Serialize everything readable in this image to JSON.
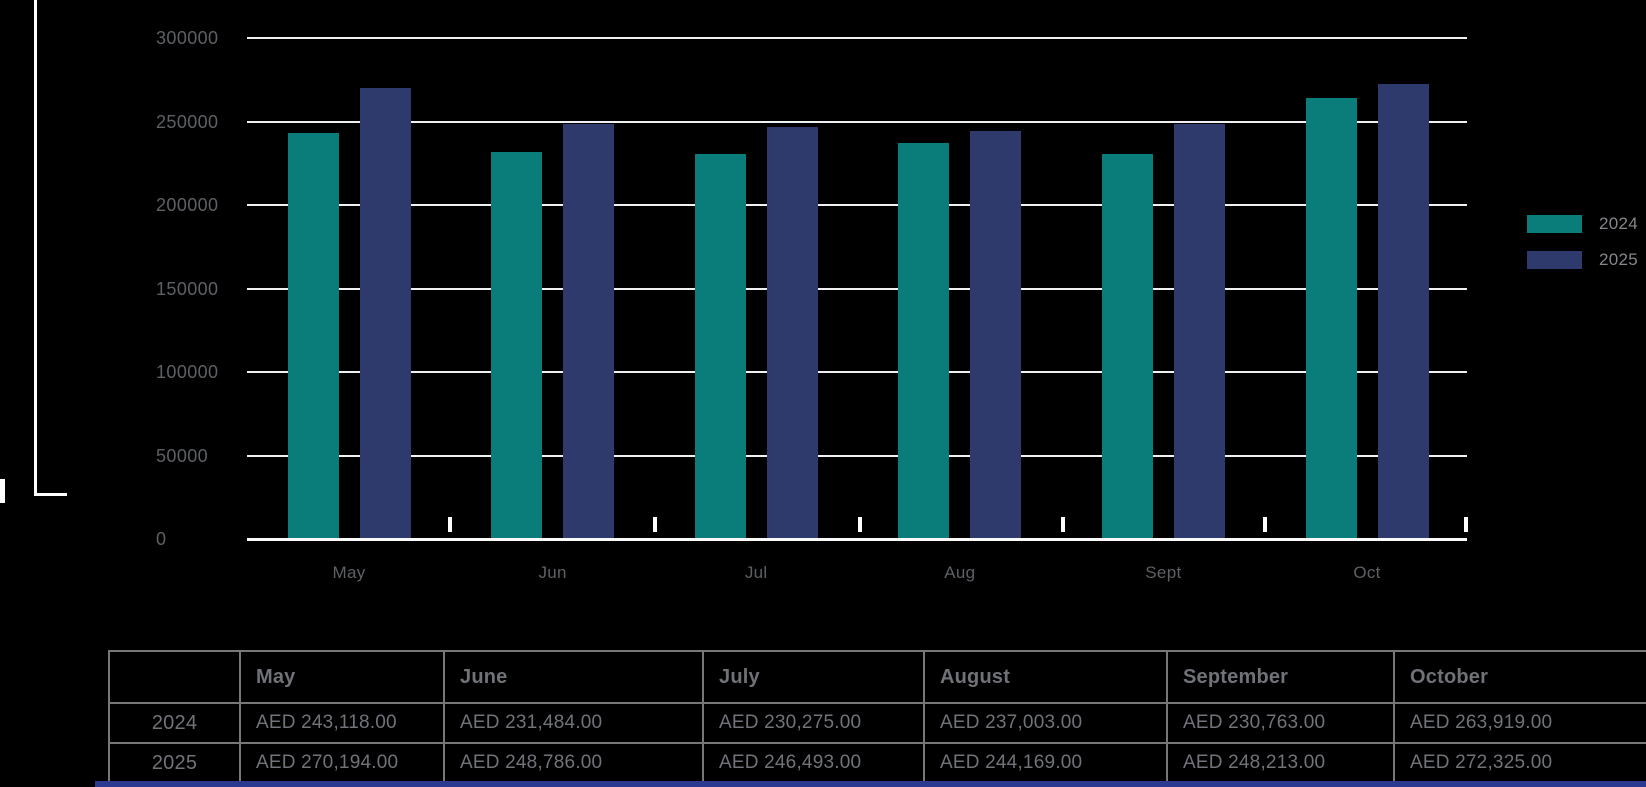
{
  "chart_data": {
    "type": "bar",
    "categories": [
      "May",
      "Jun",
      "Jul",
      "Aug",
      "Sept",
      "Oct"
    ],
    "series": [
      {
        "name": "2024",
        "color": "#0a7c79",
        "values": [
          243118,
          231484,
          230275,
          237003,
          230763,
          263919
        ]
      },
      {
        "name": "2025",
        "color": "#2e3a6b",
        "values": [
          270194,
          248786,
          246493,
          244169,
          248213,
          272325
        ]
      }
    ],
    "title": "",
    "xlabel": "",
    "ylabel": "",
    "ylim": [
      0,
      300000
    ],
    "ytick_values": [
      0,
      50000,
      100000,
      150000,
      200000,
      250000,
      300000
    ],
    "ytick_labels": [
      "0",
      "50000",
      "100000",
      "150000",
      "200000",
      "250000",
      "300000"
    ],
    "grid": true,
    "legend_position": "right"
  },
  "legend": {
    "items": [
      {
        "label": "2024",
        "color": "#0a7c79"
      },
      {
        "label": "2025",
        "color": "#2e3a6b"
      }
    ]
  },
  "table": {
    "columns": [
      "",
      "May",
      "June",
      "July",
      "August",
      "September",
      "October"
    ],
    "rows": [
      {
        "header": "2024",
        "cells": [
          "AED 243,118.00",
          "AED 231,484.00",
          "AED 230,275.00",
          "AED 237,003.00",
          "AED 230,763.00",
          "AED 263,919.00"
        ]
      },
      {
        "header": "2025",
        "cells": [
          "AED 270,194.00",
          "AED 248,786.00",
          "AED 246,493.00",
          "AED 244,169.00",
          "AED 248,213.00",
          "AED 272,325.00"
        ]
      }
    ]
  },
  "colors": {
    "background": "#000000",
    "series_2024": "#0a7c79",
    "series_2025": "#2e3a6b",
    "gridline": "#eef0f1",
    "axis_text": "#5d6165",
    "table_border": "#757779",
    "table_text": "#707379",
    "accent_strip": "#2b3990",
    "decor_line": "#ffffff"
  }
}
